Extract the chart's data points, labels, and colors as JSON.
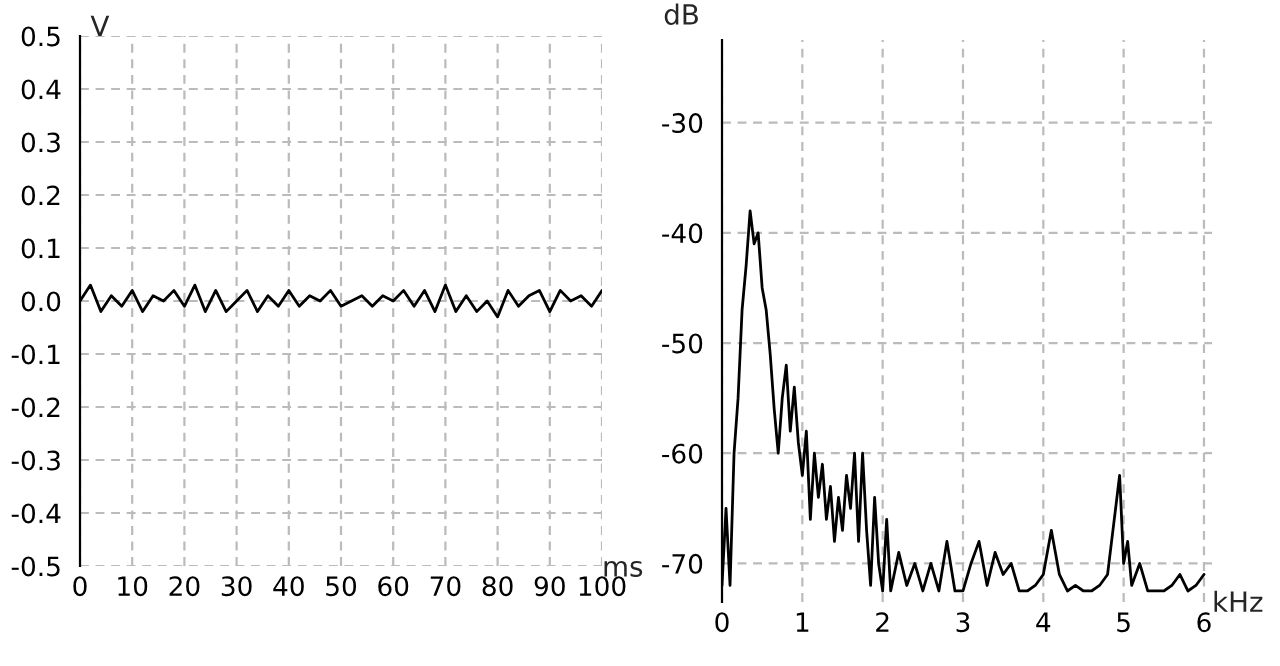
{
  "chart_data": [
    {
      "type": "line",
      "xlabel": "ms",
      "ylabel": "V",
      "grid": true,
      "marker": "none",
      "line_style": "solid",
      "xlim": [
        0,
        100
      ],
      "ylim": [
        -0.5,
        0.5
      ],
      "xticks": [
        0,
        10,
        20,
        30,
        40,
        50,
        60,
        70,
        80,
        90,
        100
      ],
      "yticks": [
        -0.5,
        -0.4,
        -0.3,
        -0.2,
        -0.1,
        {
          "value": 0,
          "label": "0.0"
        },
        0.1,
        0.2,
        0.3,
        0.4,
        0.5
      ],
      "series": [
        {
          "color": "#000000",
          "x": [
            0,
            2,
            4,
            6,
            8,
            10,
            12,
            14,
            16,
            18,
            20,
            22,
            24,
            26,
            28,
            30,
            32,
            34,
            36,
            38,
            40,
            42,
            44,
            46,
            48,
            50,
            52,
            54,
            56,
            58,
            60,
            62,
            64,
            66,
            68,
            70,
            72,
            74,
            76,
            78,
            80,
            82,
            84,
            86,
            88,
            90,
            92,
            94,
            96,
            98,
            100
          ],
          "values": [
            0.0,
            0.03,
            -0.02,
            0.01,
            -0.01,
            0.02,
            -0.02,
            0.01,
            0.0,
            0.02,
            -0.01,
            0.03,
            -0.02,
            0.02,
            -0.02,
            0.0,
            0.02,
            -0.02,
            0.01,
            -0.01,
            0.02,
            -0.01,
            0.01,
            0.0,
            0.02,
            -0.01,
            0.0,
            0.01,
            -0.01,
            0.01,
            0.0,
            0.02,
            -0.01,
            0.02,
            -0.02,
            0.03,
            -0.02,
            0.01,
            -0.02,
            0.0,
            -0.03,
            0.02,
            -0.01,
            0.01,
            0.02,
            -0.02,
            0.02,
            0.0,
            0.01,
            -0.01,
            0.02
          ]
        }
      ]
    },
    {
      "type": "line",
      "xlabel": "kHz",
      "ylabel": "dB",
      "grid": true,
      "marker": "none",
      "line_style": "solid",
      "xlim": [
        0,
        6.1
      ],
      "ylim": [
        -73.5,
        -22.5
      ],
      "xticks": [
        0,
        1,
        2,
        3,
        4,
        5,
        6
      ],
      "yticks": [
        -70,
        -60,
        -50,
        -40,
        -30
      ],
      "series": [
        {
          "color": "#000000",
          "x": [
            0,
            0.05,
            0.1,
            0.15,
            0.2,
            0.25,
            0.3,
            0.35,
            0.4,
            0.45,
            0.5,
            0.55,
            0.6,
            0.65,
            0.7,
            0.75,
            0.8,
            0.85,
            0.9,
            0.95,
            1.0,
            1.05,
            1.1,
            1.15,
            1.2,
            1.25,
            1.3,
            1.35,
            1.4,
            1.45,
            1.5,
            1.55,
            1.6,
            1.65,
            1.7,
            1.75,
            1.8,
            1.85,
            1.9,
            1.95,
            2.0,
            2.05,
            2.1,
            2.2,
            2.3,
            2.4,
            2.5,
            2.6,
            2.7,
            2.8,
            2.9,
            3.0,
            3.1,
            3.2,
            3.3,
            3.4,
            3.5,
            3.6,
            3.7,
            3.8,
            3.9,
            4.0,
            4.1,
            4.2,
            4.3,
            4.4,
            4.5,
            4.6,
            4.7,
            4.8,
            4.9,
            4.95,
            5.0,
            5.05,
            5.1,
            5.2,
            5.3,
            5.5,
            5.6,
            5.7,
            5.8,
            5.9,
            6.0
          ],
          "values": [
            -72,
            -65,
            -72,
            -60,
            -55,
            -47,
            -43,
            -38,
            -41,
            -40,
            -45,
            -47,
            -51,
            -56,
            -60,
            -55,
            -52,
            -58,
            -54,
            -59,
            -62,
            -58,
            -66,
            -60,
            -64,
            -61,
            -66,
            -63,
            -68,
            -64,
            -67,
            -62,
            -65,
            -60,
            -68,
            -60,
            -67,
            -72,
            -64,
            -70,
            -72.5,
            -66,
            -72.5,
            -69,
            -72,
            -70,
            -72.5,
            -70,
            -72.5,
            -68,
            -72.5,
            -72.5,
            -70,
            -68,
            -72,
            -69,
            -71,
            -70,
            -72.5,
            -72.5,
            -72,
            -71,
            -67,
            -71,
            -72.5,
            -72,
            -72.5,
            -72.5,
            -72,
            -71,
            -65,
            -62,
            -70,
            -68,
            -72,
            -70,
            -72.5,
            -72.5,
            -72,
            -71,
            -72.5,
            -72,
            -71
          ]
        }
      ]
    }
  ]
}
